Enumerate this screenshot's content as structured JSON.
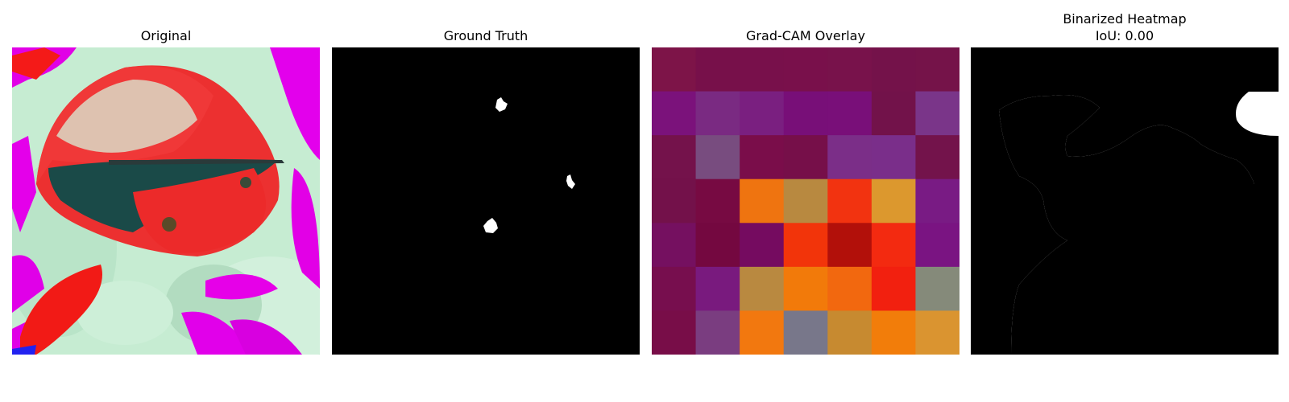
{
  "panels": {
    "original": {
      "title": "Original"
    },
    "ground_truth": {
      "title": "Ground Truth"
    },
    "gradcam": {
      "title": "Grad-CAM Overlay",
      "grid": [
        [
          "#7d1448",
          "#77104a",
          "#78104b",
          "#79104b",
          "#78124b",
          "#74124a",
          "#751349"
        ],
        [
          "#7b127b",
          "#7a2a82",
          "#7a1f80",
          "#780f78",
          "#790f79",
          "#72124a",
          "#7a3589"
        ],
        [
          "#74124b",
          "#784c7f",
          "#7a0d4a",
          "#760f49",
          "#7b2e88",
          "#7a2e8a",
          "#73134b"
        ],
        [
          "#73114a",
          "#770a42",
          "#ef7410",
          "#b88940",
          "#f23310",
          "#dc982e",
          "#791b84"
        ],
        [
          "#751060",
          "#740840",
          "#750b60",
          "#f2340a",
          "#b2100a",
          "#f32a10",
          "#7a1482"
        ],
        [
          "#770e4e",
          "#791a7e",
          "#b98940",
          "#f27a0a",
          "#f2680f",
          "#f2200f",
          "#858a7a"
        ],
        [
          "#780d48",
          "#7a3d80",
          "#f2780f",
          "#78778a",
          "#c78a30",
          "#f27d0a",
          "#da9430"
        ]
      ]
    },
    "binarized": {
      "title": "Binarized Heatmap",
      "subtitle": "IoU: 0.00"
    }
  }
}
